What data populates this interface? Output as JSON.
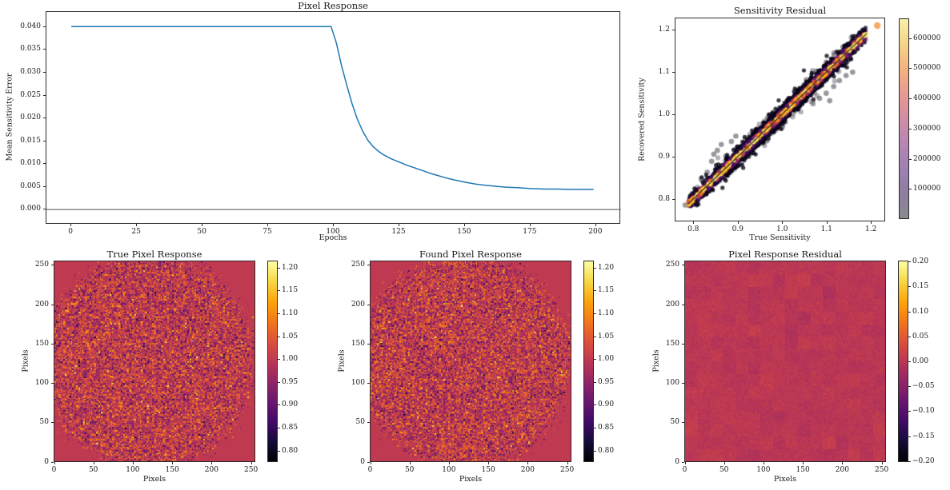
{
  "colors": {
    "line_blue": "#1f77b4",
    "zero_line_gray": "#7f7f7f",
    "axis_color": "#2b2b2b",
    "identity_line": "#151515",
    "outlier_gray": "#6b6570",
    "notable_outlier_gray": "#5d5762",
    "lone_outlier_orange": "#f4a75b",
    "inferno": [
      "#000004",
      "#160b39",
      "#420a68",
      "#6a176e",
      "#932667",
      "#bc3754",
      "#dd513a",
      "#f37819",
      "#fca50a",
      "#f6d746",
      "#fcffa4"
    ],
    "scatter_cbar_gradient": [
      "#8a8a8f",
      "#8e7da1",
      "#9e81b2",
      "#b886b2",
      "#d18da4",
      "#e69a92",
      "#f2b27f",
      "#f6d38a",
      "#f8f0a8"
    ]
  },
  "chart_data": [
    {
      "type": "line",
      "title": "Pixel Response",
      "xlabel": "Epochs",
      "ylabel": "Mean Sensitivity Error",
      "xlim": [
        -9.5,
        209.5
      ],
      "ylim": [
        -0.0033,
        0.0433
      ],
      "xticks": [
        0,
        25,
        50,
        75,
        100,
        125,
        150,
        175,
        200
      ],
      "xtick_labels": [
        "0",
        "25",
        "50",
        "75",
        "100",
        "125",
        "150",
        "175",
        "200"
      ],
      "yticks": [
        0,
        0.005,
        0.01,
        0.015,
        0.02,
        0.025,
        0.03,
        0.035,
        0.04
      ],
      "ytick_labels": [
        "0.000",
        "0.005",
        "0.010",
        "0.015",
        "0.020",
        "0.025",
        "0.030",
        "0.035",
        "0.040"
      ],
      "zero_line": 0,
      "series": [
        {
          "name": "mean_sensitivity_error",
          "points": [
            [
              0,
              0.0401
            ],
            [
              10,
              0.0401
            ],
            [
              20,
              0.0401
            ],
            [
              30,
              0.0401
            ],
            [
              40,
              0.0401
            ],
            [
              50,
              0.0401
            ],
            [
              60,
              0.0401
            ],
            [
              70,
              0.0401
            ],
            [
              80,
              0.0401
            ],
            [
              90,
              0.0401
            ],
            [
              99,
              0.0401
            ],
            [
              101,
              0.0365
            ],
            [
              103,
              0.0315
            ],
            [
              105,
              0.0272
            ],
            [
              107,
              0.0232
            ],
            [
              109,
              0.0198
            ],
            [
              111,
              0.0172
            ],
            [
              113,
              0.0152
            ],
            [
              115,
              0.0138
            ],
            [
              117,
              0.0128
            ],
            [
              119,
              0.012
            ],
            [
              122,
              0.0111
            ],
            [
              125,
              0.0104
            ],
            [
              128,
              0.0097
            ],
            [
              131,
              0.0091
            ],
            [
              134,
              0.0085
            ],
            [
              137,
              0.0079
            ],
            [
              140,
              0.0074
            ],
            [
              143,
              0.0069
            ],
            [
              146,
              0.0065
            ],
            [
              150,
              0.006
            ],
            [
              154,
              0.0056
            ],
            [
              158,
              0.0053
            ],
            [
              162,
              0.0051
            ],
            [
              166,
              0.0049
            ],
            [
              170,
              0.0048
            ],
            [
              175,
              0.0046
            ],
            [
              180,
              0.0045
            ],
            [
              185,
              0.0045
            ],
            [
              190,
              0.0044
            ],
            [
              195,
              0.0044
            ],
            [
              199,
              0.0044
            ]
          ]
        }
      ]
    },
    {
      "type": "scatter",
      "title": "Sensitivity Residual",
      "xlabel": "True Sensitivity",
      "ylabel": "Recovered Sensitivity",
      "xlim": [
        0.758,
        1.232
      ],
      "ylim": [
        0.747,
        1.228
      ],
      "xticks": [
        0.8,
        0.9,
        1.0,
        1.1,
        1.2
      ],
      "xtick_labels": [
        "0.8",
        "0.9",
        "1.0",
        "1.1",
        "1.2"
      ],
      "yticks": [
        0.8,
        0.9,
        1.0,
        1.1,
        1.2
      ],
      "ytick_labels": [
        "0.8",
        "0.9",
        "1.0",
        "1.1",
        "1.2"
      ],
      "identity_line": [
        [
          0.785,
          0.785
        ],
        [
          1.192,
          1.192
        ]
      ],
      "lone_outlier": [
        1.216,
        1.211
      ],
      "notable_outliers": [
        [
          0.845,
          0.905
        ],
        [
          0.853,
          0.914
        ],
        [
          0.84,
          0.888
        ],
        [
          0.862,
          0.928
        ],
        [
          0.872,
          0.9
        ],
        [
          0.83,
          0.862
        ],
        [
          0.885,
          0.935
        ],
        [
          0.895,
          0.948
        ],
        [
          0.94,
          0.957
        ],
        [
          0.947,
          0.962
        ],
        [
          0.952,
          0.967
        ],
        [
          0.957,
          0.97
        ],
        [
          1.085,
          1.038
        ],
        [
          1.1,
          1.05
        ],
        [
          1.117,
          1.066
        ],
        [
          1.13,
          1.08
        ],
        [
          1.145,
          1.092
        ],
        [
          1.108,
          1.032
        ],
        [
          1.16,
          1.1
        ],
        [
          1.07,
          1.025
        ],
        [
          1.1,
          1.124
        ],
        [
          1.118,
          1.142
        ],
        [
          1.138,
          1.16
        ],
        [
          1.078,
          1.103
        ],
        [
          1.055,
          1.082
        ],
        [
          0.78,
          0.784
        ],
        [
          0.793,
          0.8
        ],
        [
          0.818,
          0.843
        ]
      ],
      "generator": {
        "seed": 42,
        "n_core": 6500,
        "n_outliers": 120,
        "x_mean": 0.99,
        "x_std": 0.105,
        "x_range": [
          0.787,
          1.19
        ],
        "band_sigma_base": 0.004,
        "band_sigma_spread": 0.004,
        "density_scale": 0.0075,
        "outlier_mag_base": 0.006,
        "outlier_mag_spread": 0.015
      },
      "colorbar": {
        "vmin": 0,
        "vmax": 665000,
        "ticks": [
          100000,
          200000,
          300000,
          400000,
          500000,
          600000
        ],
        "tick_labels": [
          "100000",
          "200000",
          "300000",
          "400000",
          "500000",
          "600000"
        ]
      }
    },
    {
      "type": "heatmap",
      "title": "True Pixel Response",
      "xlabel": "Pixels",
      "ylabel": "Pixels",
      "extent": [
        0,
        256
      ],
      "xticks": [
        0,
        50,
        100,
        150,
        200,
        250
      ],
      "xtick_labels": [
        "0",
        "50",
        "100",
        "150",
        "200",
        "250"
      ],
      "yticks": [
        0,
        50,
        100,
        150,
        200,
        250
      ],
      "ytick_labels": [
        "0",
        "50",
        "100",
        "150",
        "200",
        "250"
      ],
      "vmin": 0.775,
      "vmax": 1.215,
      "mean": 1.0,
      "generator": {
        "seed": 7,
        "grid": 160,
        "noise_std": 0.057,
        "aperture": {
          "cx": 74.4,
          "cy": 79.4,
          "r": 83.1,
          "jitter": 5,
          "speck_p": 0.05,
          "speck_extent": 6
        }
      },
      "colorbar": {
        "ticks": [
          1.2,
          1.15,
          1.1,
          1.05,
          1.0,
          0.95,
          0.9,
          0.85,
          0.8
        ],
        "tick_labels": [
          "1.20",
          "1.15",
          "1.10",
          "1.05",
          "1.00",
          "0.95",
          "0.90",
          "0.85",
          "0.80"
        ]
      }
    },
    {
      "type": "heatmap",
      "title": "Found Pixel Response",
      "xlabel": "Pixels",
      "ylabel": "Pixels",
      "extent": [
        0,
        256
      ],
      "xticks": [
        0,
        50,
        100,
        150,
        200,
        250
      ],
      "xtick_labels": [
        "0",
        "50",
        "100",
        "150",
        "200",
        "250"
      ],
      "yticks": [
        0,
        50,
        100,
        150,
        200,
        250
      ],
      "ytick_labels": [
        "0",
        "50",
        "100",
        "150",
        "200",
        "250"
      ],
      "vmin": 0.775,
      "vmax": 1.215,
      "mean": 1.0,
      "generator": {
        "seed": 13,
        "grid": 160,
        "noise_std": 0.057,
        "aperture": {
          "cx": 74.4,
          "cy": 79.4,
          "r": 83.1,
          "jitter": 5,
          "speck_p": 0.05,
          "speck_extent": 6
        }
      },
      "colorbar": {
        "ticks": [
          1.2,
          1.15,
          1.1,
          1.05,
          1.0,
          0.95,
          0.9,
          0.85,
          0.8
        ],
        "tick_labels": [
          "1.20",
          "1.15",
          "1.10",
          "1.05",
          "1.00",
          "0.95",
          "0.90",
          "0.85",
          "0.80"
        ]
      }
    },
    {
      "type": "heatmap",
      "title": "Pixel Response Residual",
      "xlabel": "Pixels",
      "ylabel": "Pixels",
      "extent": [
        0,
        256
      ],
      "xticks": [
        0,
        50,
        100,
        150,
        200,
        250
      ],
      "xtick_labels": [
        "0",
        "50",
        "100",
        "150",
        "200",
        "250"
      ],
      "yticks": [
        0,
        50,
        100,
        150,
        200,
        250
      ],
      "ytick_labels": [
        "0",
        "50",
        "100",
        "150",
        "200",
        "250"
      ],
      "vmin": -0.202,
      "vmax": 0.202,
      "mean": 0.0,
      "generator": {
        "seed": 21,
        "grid": 128,
        "noise_std": 0.0055,
        "lowfreq_std": 0.004,
        "lowfreq_cell": 8,
        "aperture": null
      },
      "colorbar": {
        "ticks": [
          0.2,
          0.15,
          0.1,
          0.05,
          0,
          -0.05,
          -0.1,
          -0.15,
          -0.2
        ],
        "tick_labels": [
          "0.20",
          "0.15",
          "0.10",
          "0.05",
          "0.00",
          "−0.05",
          "−0.10",
          "−0.15",
          "−0.20"
        ]
      }
    }
  ]
}
